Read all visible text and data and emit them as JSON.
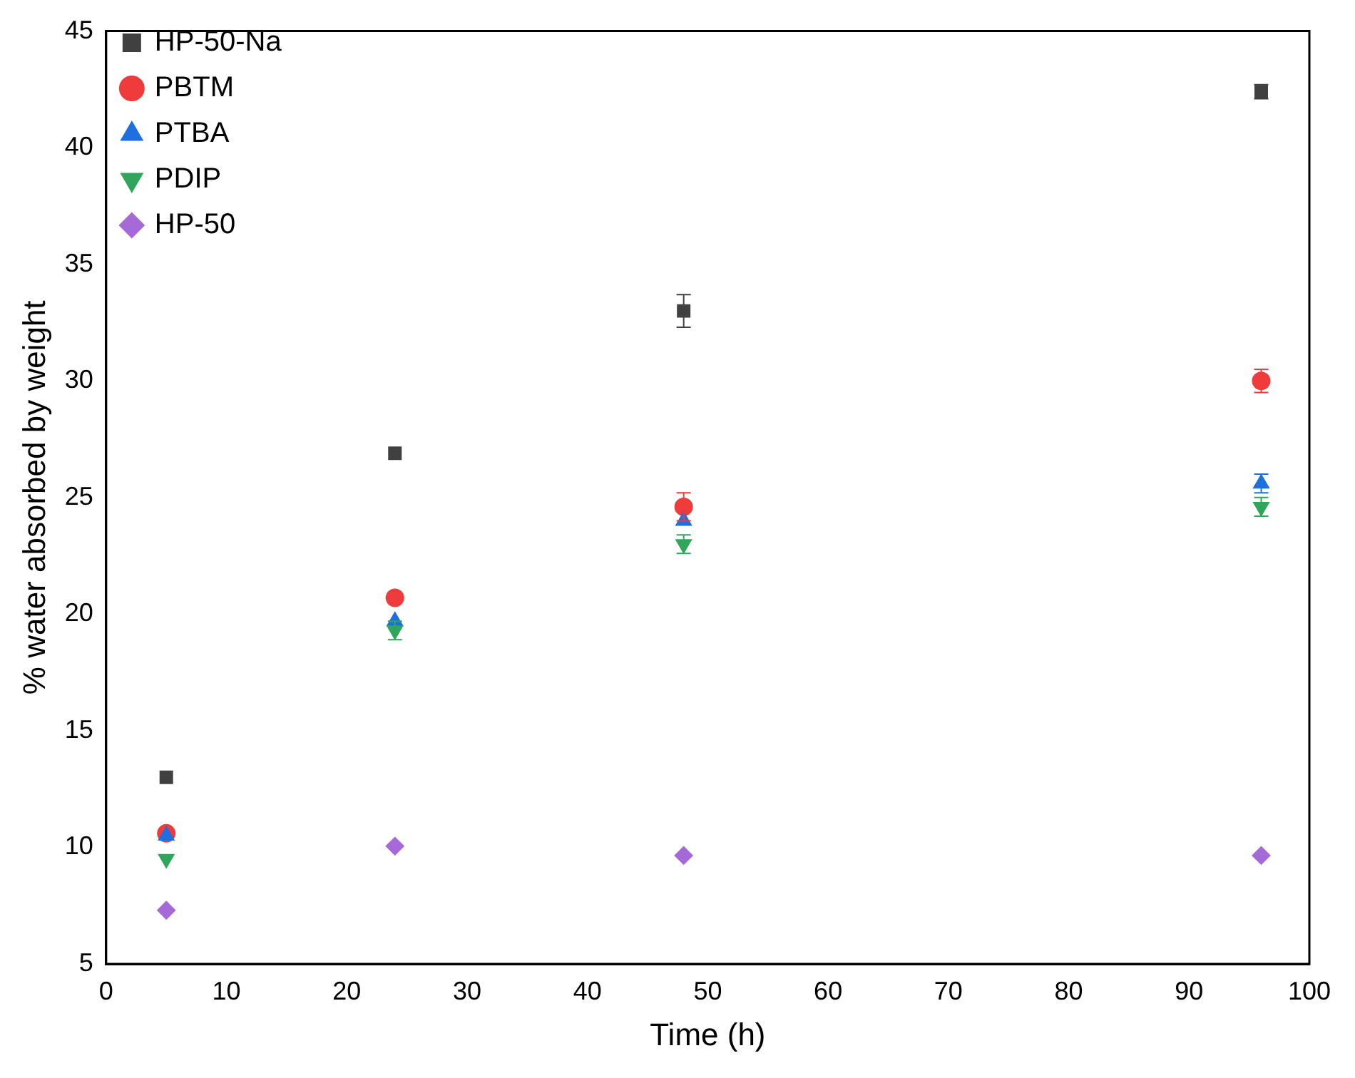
{
  "chart_data": {
    "type": "scatter",
    "xlabel": "Time (h)",
    "ylabel": "% water absorbed by weight",
    "x": [
      5,
      24,
      48,
      96
    ],
    "xlim": [
      0,
      100
    ],
    "xticks": [
      0,
      10,
      20,
      30,
      40,
      50,
      60,
      70,
      80,
      90,
      100
    ],
    "ylim": [
      5,
      45
    ],
    "yticks": [
      5,
      10,
      15,
      20,
      25,
      30,
      35,
      40,
      45
    ],
    "grid": false,
    "legend": "top left",
    "series": [
      {
        "name": "HP-50-Na",
        "color": "#404040",
        "marker": "square",
        "values": [
          13.0,
          26.9,
          33.0,
          42.4
        ],
        "errors": [
          null,
          null,
          0.7,
          0.3
        ]
      },
      {
        "name": "PBTM",
        "color": "#ef3b3b",
        "marker": "circle",
        "values": [
          10.6,
          20.7,
          24.6,
          30.0
        ],
        "errors": [
          null,
          null,
          0.6,
          0.5
        ]
      },
      {
        "name": "PTBA",
        "color": "#1f6fe0",
        "marker": "triangle",
        "values": [
          10.5,
          19.7,
          24.0,
          25.6
        ],
        "errors": [
          null,
          null,
          null,
          0.4
        ]
      },
      {
        "name": "PDIP",
        "color": "#2fa65b",
        "marker": "triangle-down",
        "values": [
          9.5,
          19.3,
          23.0,
          24.6
        ],
        "errors": [
          null,
          0.4,
          0.4,
          0.4
        ]
      },
      {
        "name": "HP-50",
        "color": "#a66ad8",
        "marker": "diamond",
        "values": [
          7.3,
          10.05,
          9.65,
          9.65
        ]
      }
    ]
  }
}
